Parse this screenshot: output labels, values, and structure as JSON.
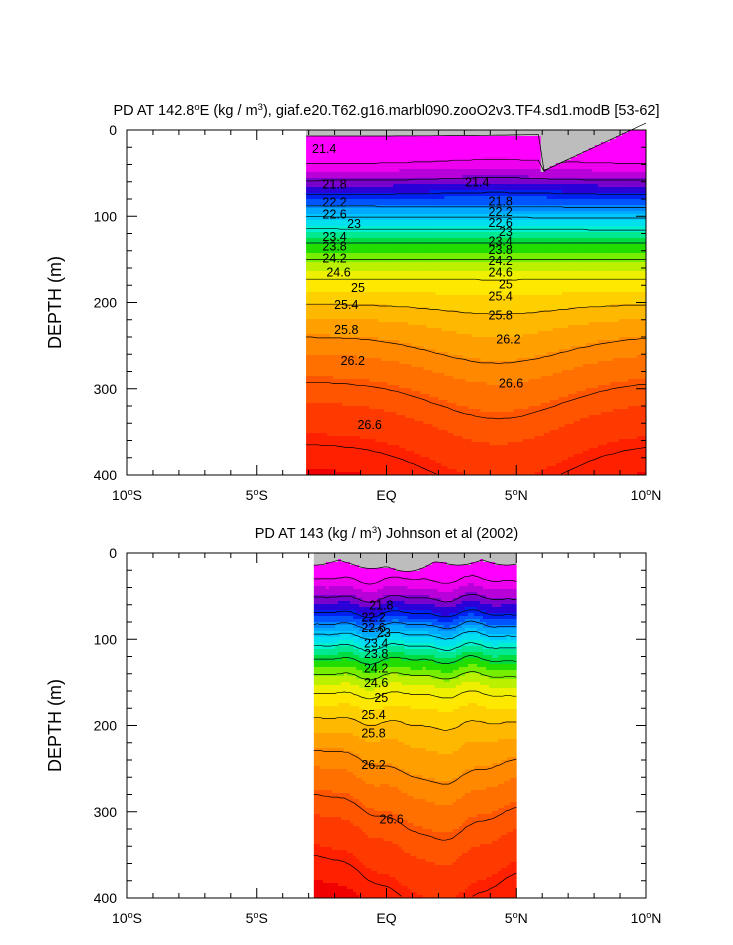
{
  "colors": {
    "land": "#bdbdbd",
    "fill_levels": [
      "#ff00ff",
      "#ee00ee",
      "#b800d8",
      "#7a00cc",
      "#2a00d8",
      "#0022f0",
      "#0055ff",
      "#0088ff",
      "#00aaff",
      "#00c8ff",
      "#00e0ee",
      "#00f0d0",
      "#00e890",
      "#00dd40",
      "#22dd00",
      "#77ee00",
      "#bbf000",
      "#eef000",
      "#ffe800",
      "#ffd000",
      "#ffb800",
      "#ffa000",
      "#ff8800",
      "#ff7000",
      "#ff5500",
      "#ff3a00",
      "#ff2000",
      "#f00000",
      "#dd0000",
      "#c80000"
    ]
  },
  "chart_data": [
    {
      "type": "contour",
      "title_parts": [
        "PD AT 142.8",
        "o",
        "E (kg / m",
        "3",
        "), giaf.e20.T62.g16.marbl090.zooO2v3.TF4.sd1.modB [53-62]"
      ],
      "ylabel": "DEPTH (m)",
      "yticks": [
        "0",
        "100",
        "200",
        "300",
        "400"
      ],
      "xticks": [
        {
          "v": -10,
          "num": "10",
          "hemi": "S"
        },
        {
          "v": -5,
          "num": "5",
          "hemi": "S"
        },
        {
          "v": 0,
          "num": "EQ",
          "hemi": ""
        },
        {
          "v": 5,
          "num": "5",
          "hemi": "N"
        },
        {
          "v": 10,
          "num": "10",
          "hemi": "N"
        }
      ],
      "xlim": [
        -10,
        10
      ],
      "ylim": [
        0,
        400
      ],
      "data_xrange": [
        -3.1,
        10
      ],
      "levels": [
        21.4,
        21.8,
        22.2,
        22.6,
        23,
        23.4,
        23.8,
        24.2,
        24.6,
        25,
        25.4,
        25.8,
        26.2,
        26.6
      ],
      "contour_labels": [
        {
          "text": "21.4",
          "x": -2.4,
          "y": 22
        },
        {
          "text": "21.8",
          "x": -2.0,
          "y": 63
        },
        {
          "text": "22.2",
          "x": -2.0,
          "y": 84
        },
        {
          "text": "22.6",
          "x": -2.0,
          "y": 98
        },
        {
          "text": "23",
          "x": -1.25,
          "y": 109
        },
        {
          "text": "23.4",
          "x": -2.0,
          "y": 124
        },
        {
          "text": "23.8",
          "x": -2.0,
          "y": 135
        },
        {
          "text": "24.2",
          "x": -2.0,
          "y": 149
        },
        {
          "text": "24.6",
          "x": -1.85,
          "y": 165
        },
        {
          "text": "25",
          "x": -1.1,
          "y": 183
        },
        {
          "text": "25.4",
          "x": -1.55,
          "y": 203
        },
        {
          "text": "25.8",
          "x": -1.55,
          "y": 232
        },
        {
          "text": "26.2",
          "x": -1.3,
          "y": 268
        },
        {
          "text": "26.6",
          "x": -0.65,
          "y": 342
        },
        {
          "text": "21.4",
          "x": 3.5,
          "y": 61
        },
        {
          "text": "21.8",
          "x": 4.4,
          "y": 83
        },
        {
          "text": "22.2",
          "x": 4.4,
          "y": 95
        },
        {
          "text": "22.6",
          "x": 4.4,
          "y": 108
        },
        {
          "text": "23",
          "x": 4.6,
          "y": 118
        },
        {
          "text": "23.4",
          "x": 4.4,
          "y": 129
        },
        {
          "text": "23.8",
          "x": 4.4,
          "y": 139
        },
        {
          "text": "24.2",
          "x": 4.4,
          "y": 152
        },
        {
          "text": "24.6",
          "x": 4.4,
          "y": 165
        },
        {
          "text": "25",
          "x": 4.6,
          "y": 179
        },
        {
          "text": "25.4",
          "x": 4.4,
          "y": 193
        },
        {
          "text": "25.8",
          "x": 4.4,
          "y": 215
        },
        {
          "text": "26.2",
          "x": 4.7,
          "y": 243
        },
        {
          "text": "26.6",
          "x": 4.8,
          "y": 294
        }
      ]
    },
    {
      "type": "contour",
      "title_parts": [
        "PD AT 143 (kg / m",
        "3",
        ") Johnson et al (2002)"
      ],
      "ylabel": "DEPTH (m)",
      "yticks": [
        "0",
        "100",
        "200",
        "300",
        "400"
      ],
      "xticks": [
        {
          "v": -10,
          "num": "10",
          "hemi": "S"
        },
        {
          "v": -5,
          "num": "5",
          "hemi": "S"
        },
        {
          "v": 0,
          "num": "EQ",
          "hemi": ""
        },
        {
          "v": 5,
          "num": "5",
          "hemi": "N"
        },
        {
          "v": 10,
          "num": "10",
          "hemi": "N"
        }
      ],
      "xlim": [
        -10,
        10
      ],
      "ylim": [
        0,
        400
      ],
      "data_xrange": [
        -2.8,
        5
      ],
      "levels": [
        21.4,
        21.8,
        22.2,
        22.6,
        23,
        23.4,
        23.8,
        24.2,
        24.6,
        25,
        25.4,
        25.8,
        26.2,
        26.6
      ],
      "contour_labels": [
        {
          "text": "21.8",
          "x": -0.2,
          "y": 61
        },
        {
          "text": "22.2",
          "x": -0.5,
          "y": 75
        },
        {
          "text": "22.6",
          "x": -0.5,
          "y": 87
        },
        {
          "text": "23",
          "x": -0.1,
          "y": 93
        },
        {
          "text": "23.4",
          "x": -0.4,
          "y": 105
        },
        {
          "text": "23.8",
          "x": -0.4,
          "y": 117
        },
        {
          "text": "24.2",
          "x": -0.4,
          "y": 134
        },
        {
          "text": "24.6",
          "x": -0.4,
          "y": 151
        },
        {
          "text": "25",
          "x": -0.2,
          "y": 168
        },
        {
          "text": "25.4",
          "x": -0.5,
          "y": 188
        },
        {
          "text": "25.8",
          "x": -0.5,
          "y": 209
        },
        {
          "text": "26.2",
          "x": -0.5,
          "y": 246
        },
        {
          "text": "26.6",
          "x": 0.2,
          "y": 309
        }
      ]
    }
  ]
}
